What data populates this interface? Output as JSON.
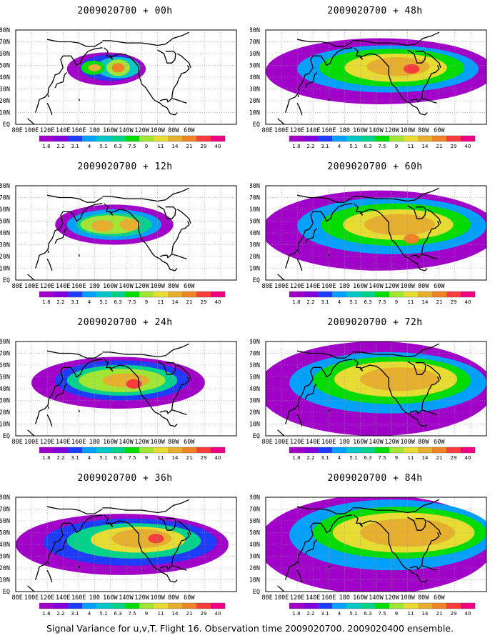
{
  "figure": {
    "caption": "Signal Variance for u,v,T. Flight 16. Observation time 2009020700. 2009020400 ensemble."
  },
  "lat_labels": [
    "EQ",
    "10N",
    "20N",
    "30N",
    "40N",
    "50N",
    "60N",
    "70N",
    "80N"
  ],
  "lon_labels": [
    "80E",
    "100E",
    "120E",
    "140E",
    "160E",
    "180",
    "160W",
    "140W",
    "120W",
    "100W",
    "80W",
    "60W"
  ],
  "colorbar": {
    "labels": [
      "1.8",
      "2.2",
      "3.1",
      "4",
      "5.1",
      "6.3",
      "7.5",
      "9",
      "11",
      "14",
      "21",
      "29",
      "40"
    ],
    "colors": [
      "#a000c8",
      "#8200dc",
      "#1e3cff",
      "#00a0ff",
      "#00c8c8",
      "#00d28c",
      "#00dc00",
      "#a0e632",
      "#e6dc32",
      "#e6af2d",
      "#f08228",
      "#fa3c3c",
      "#f00082"
    ]
  },
  "panels": [
    {
      "title": "2009020700 + 00h"
    },
    {
      "title": "2009020700 + 48h"
    },
    {
      "title": "2009020700 + 12h"
    },
    {
      "title": "2009020700 + 60h"
    },
    {
      "title": "2009020700 + 24h"
    },
    {
      "title": "2009020700 + 72h"
    },
    {
      "title": "2009020700 + 36h"
    },
    {
      "title": "2009020700 + 84h"
    }
  ]
}
